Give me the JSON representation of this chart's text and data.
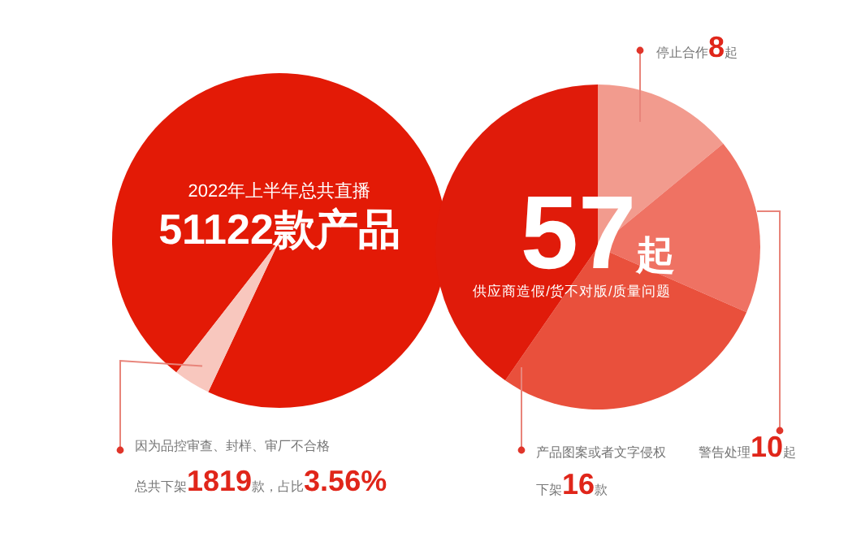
{
  "chart_data": [
    {
      "type": "pie",
      "title": "2022年上半年总共直播",
      "subtitle": "51122款产品",
      "categories": [
        null,
        "因为品控审查、封样、审厂不合格"
      ],
      "values": [
        96.44,
        3.56
      ],
      "colors": [
        "#e31a06",
        "#f8c7be"
      ],
      "value_labels": [
        null,
        "总共下架1819款，占比3.56%"
      ]
    },
    {
      "type": "pie",
      "title": "57起",
      "subtitle": "供应商造假/货不对版/质量问题",
      "categories": [
        "停止合作",
        "警告处理",
        "产品图案或者文字侵权",
        null
      ],
      "values": [
        8,
        10,
        16,
        23
      ],
      "colors": [
        "#f29b8e",
        "#ef7263",
        "#e9503c",
        "#e01b0a"
      ],
      "value_labels": [
        "8起",
        "10起",
        "下架16款",
        null
      ]
    }
  ]
}
